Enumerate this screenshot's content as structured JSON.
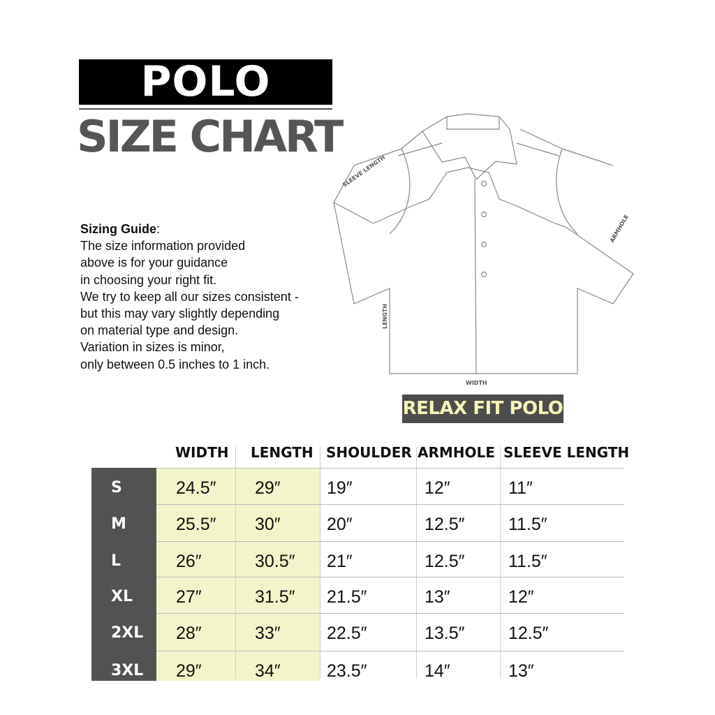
{
  "title": "POLO",
  "subtitle": "SIZE CHART",
  "guide": {
    "heading": "Sizing Guide",
    "colon": ":",
    "lines": [
      "The size information provided",
      "above is for your guidance",
      "in choosing your right fit.",
      "We try to keep all our sizes consistent -",
      "but this may vary slightly depending",
      "on material type and design.",
      "Variation in sizes is minor,",
      "only between 0.5 inches to 1 inch."
    ]
  },
  "diagram": {
    "sleeve_label": "SLEEVE LENGTH",
    "armhole_label": "ARMHOLE",
    "length_label": "LENGTH",
    "width_label": "WIDTH"
  },
  "fit_label": "RELAX FIT POLO",
  "colors": {
    "dark": "#525252",
    "highlight": "#f2f5cb",
    "badge_text": "#f5f3b8"
  },
  "table": {
    "headers": [
      "WIDTH",
      "LENGTH",
      "SHOULDER",
      "ARMHOLE",
      "SLEEVE LENGTH"
    ],
    "rows": [
      {
        "size": "S",
        "values": [
          "24.5″",
          "29″",
          "19″",
          "12″",
          "11″"
        ]
      },
      {
        "size": "M",
        "values": [
          "25.5″",
          "30″",
          "20″",
          "12.5″",
          "11.5″"
        ]
      },
      {
        "size": "L",
        "values": [
          "26″",
          "30.5″",
          "21″",
          "12.5″",
          "11.5″"
        ]
      },
      {
        "size": "XL",
        "values": [
          "27″",
          "31.5″",
          "21.5″",
          "13″",
          "12″"
        ]
      },
      {
        "size": "2XL",
        "values": [
          "28″",
          "33″",
          "22.5″",
          "13.5″",
          "12.5″"
        ]
      },
      {
        "size": "3XL",
        "values": [
          "29″",
          "34″",
          "23.5″",
          "14″",
          "13″"
        ]
      }
    ]
  }
}
